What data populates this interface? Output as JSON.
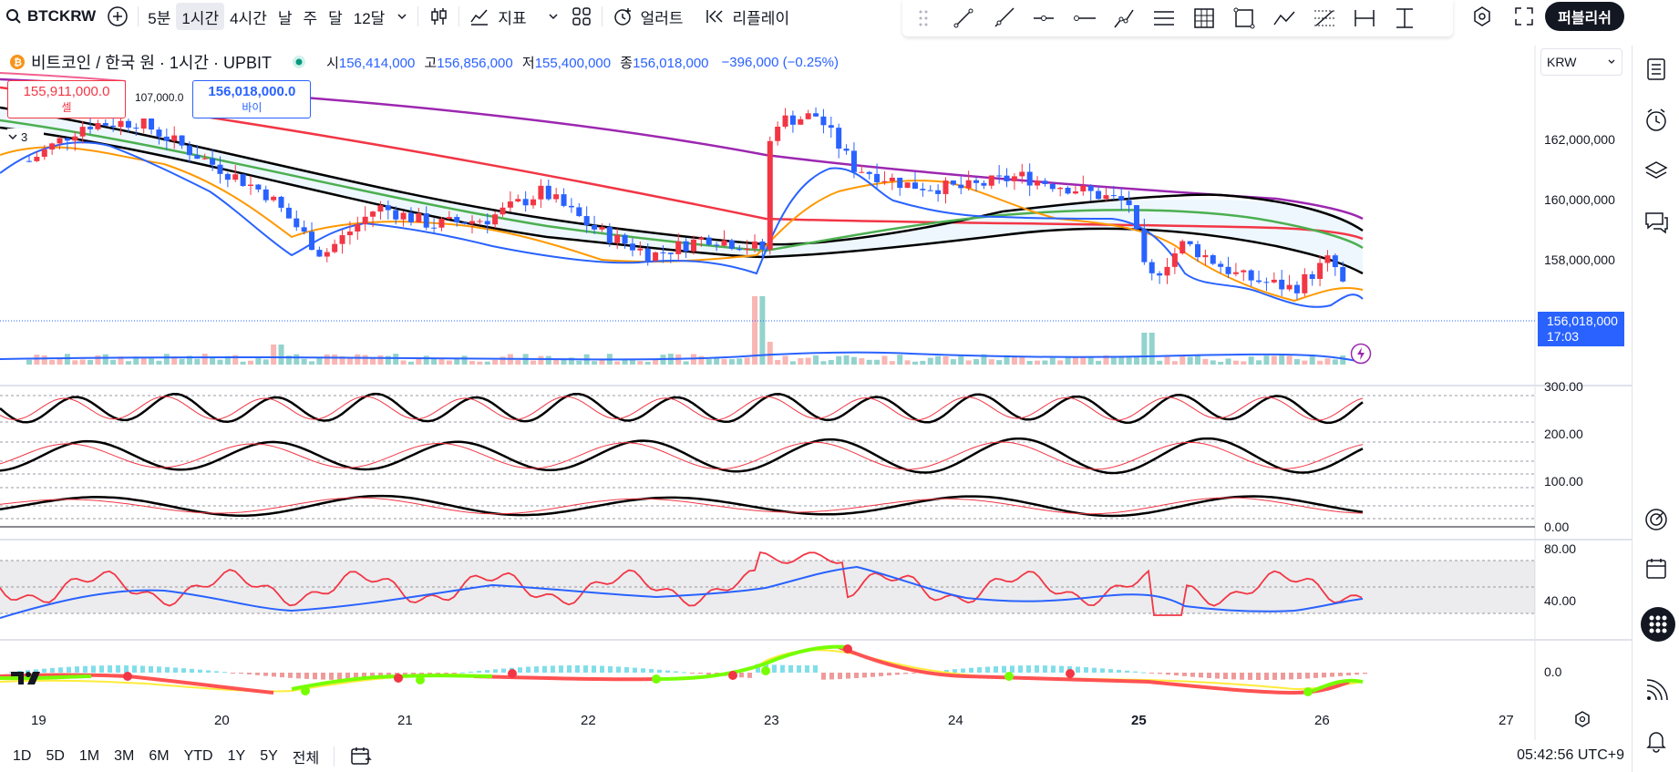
{
  "toolbar": {
    "symbol": "BTCKRW",
    "timeframes": [
      "5분",
      "1시간",
      "4시간",
      "날",
      "주",
      "달",
      "12달"
    ],
    "active_timeframe": "1시간",
    "indicators_label": "지표",
    "alert_label": "얼러트",
    "replay_label": "리플레이",
    "publish_label": "퍼블리쉬"
  },
  "legend": {
    "title": "비트코인 / 한국 원 · 1시간 · UPBIT",
    "open_label": "시",
    "open": "156,414,000",
    "high_label": "고",
    "high": "156,856,000",
    "low_label": "저",
    "low": "155,400,000",
    "close_label": "종",
    "close": "156,018,000",
    "change": "−396,000 (−0.25%)"
  },
  "trade": {
    "sell_price": "155,911,000.0",
    "sell_label": "셀",
    "spread": "107,000.0",
    "buy_price": "156,018,000.0",
    "buy_label": "바이",
    "indicator_count": "3"
  },
  "currency": "KRW",
  "price_badge": {
    "price": "156,018,000",
    "countdown": "17:03"
  },
  "colors": {
    "up": "#f23645",
    "down": "#2962ff",
    "accent": "#2962ff",
    "purple": "#9c27b0",
    "orange": "#ff9800",
    "green": "#4caf50",
    "black": "#000000"
  },
  "price_axis": [
    "162,000,000",
    "160,000,000",
    "158,000,000"
  ],
  "stoch_axis": [
    "300.00",
    "200.00",
    "100.00",
    "0.00"
  ],
  "rsi_axis": [
    "80.00",
    "40.00"
  ],
  "macd_axis": [
    "0.0"
  ],
  "time_axis": [
    "19",
    "20",
    "21",
    "22",
    "23",
    "24",
    "25",
    "26",
    "27"
  ],
  "bottombar": {
    "ranges": [
      "1D",
      "5D",
      "1M",
      "3M",
      "6M",
      "YTD",
      "1Y",
      "5Y",
      "전체"
    ],
    "clock": "05:42:56 UTC+9"
  },
  "chart_data": {
    "type": "candlestick",
    "symbol": "BTCKRW",
    "interval": "1h",
    "ylim": [
      155000000,
      164000000
    ],
    "x_days": [
      "19",
      "20",
      "21",
      "22",
      "23",
      "24",
      "25",
      "26"
    ],
    "close_path": [
      [
        0.0,
        160.5
      ],
      [
        0.3,
        161.7
      ],
      [
        0.6,
        161.8
      ],
      [
        1.0,
        160.4
      ],
      [
        1.3,
        159.4
      ],
      [
        1.6,
        157.4
      ],
      [
        1.9,
        159.0
      ],
      [
        2.2,
        158.4
      ],
      [
        2.5,
        158.6
      ],
      [
        2.8,
        159.5
      ],
      [
        3.1,
        158.2
      ],
      [
        3.4,
        157.4
      ],
      [
        3.7,
        158.0
      ],
      [
        4.0,
        157.6
      ],
      [
        4.05,
        161.8
      ],
      [
        4.3,
        162.0
      ],
      [
        4.5,
        160.3
      ],
      [
        4.8,
        159.7
      ],
      [
        5.1,
        159.6
      ],
      [
        5.4,
        160.0
      ],
      [
        5.7,
        159.6
      ],
      [
        6.0,
        159.1
      ],
      [
        6.1,
        156.5
      ],
      [
        6.3,
        157.8
      ],
      [
        6.6,
        156.7
      ],
      [
        6.9,
        156.3
      ],
      [
        7.1,
        157.3
      ],
      [
        7.2,
        156.0
      ]
    ]
  }
}
